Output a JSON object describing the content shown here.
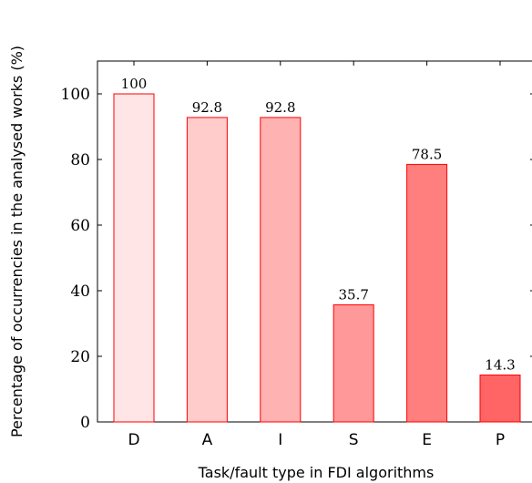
{
  "chart_data": {
    "type": "bar",
    "categories": [
      "D",
      "A",
      "I",
      "S",
      "E",
      "P"
    ],
    "values": [
      100,
      92.8,
      92.8,
      35.7,
      78.5,
      14.3
    ],
    "data_labels": [
      "100",
      "92.8",
      "92.8",
      "35.7",
      "78.5",
      "14.3"
    ],
    "xlabel": "Task/fault type in FDI algorithms",
    "ylabel": "Percentage of occurrencies in the analysed works (%)",
    "ylim": [
      0,
      110
    ],
    "yticks": [
      0,
      20,
      40,
      60,
      80,
      100
    ],
    "ytick_labels": [
      "0",
      "20",
      "40",
      "60",
      "80",
      "100"
    ],
    "grid": false,
    "bar_fill_colors": [
      "#ffe5e5",
      "#ffcbcb",
      "#ffb2b2",
      "#ff9898",
      "#ff7f7f",
      "#ff6565"
    ],
    "bar_stroke_color": "#ff0000"
  }
}
